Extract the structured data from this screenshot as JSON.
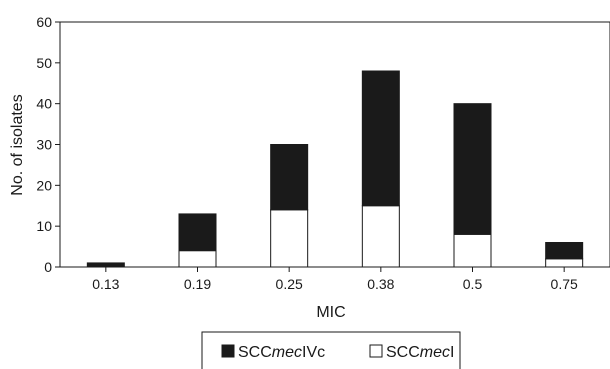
{
  "chart_data": {
    "type": "bar",
    "stacked": true,
    "categories": [
      "0.13",
      "0.19",
      "0.25",
      "0.38",
      "0.5",
      "0.75"
    ],
    "series": [
      {
        "name_prefix": "SCC",
        "name_italic": "mec",
        "name_suffix": "I",
        "color": "#ffffff",
        "values": [
          0,
          4,
          14,
          15,
          8,
          2
        ]
      },
      {
        "name_prefix": "SCC",
        "name_italic": "mec",
        "name_suffix": "IVc",
        "color": "#1a1a1a",
        "values": [
          1,
          9,
          16,
          33,
          32,
          4
        ]
      }
    ],
    "xlabel": "MIC",
    "ylabel": "No. of isolates",
    "ylim": [
      0,
      60
    ],
    "yticks": [
      0,
      10,
      20,
      30,
      40,
      50,
      60
    ],
    "grid": false,
    "legend_position": "bottom"
  }
}
